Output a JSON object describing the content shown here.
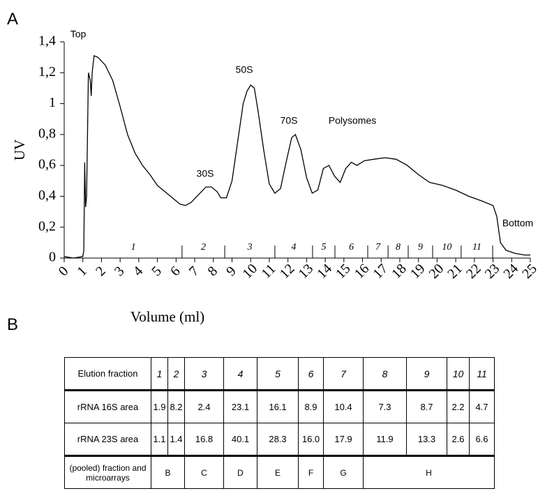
{
  "panel_label": "A",
  "chart_data": {
    "type": "line",
    "xlabel": "Volume (ml)",
    "ylabel": "UV",
    "x": [
      0,
      0.5,
      1.0,
      1.05,
      1.1,
      1.15,
      1.2,
      1.3,
      1.4,
      1.45,
      1.5,
      1.6,
      1.8,
      2.2,
      2.6,
      3.0,
      3.4,
      3.8,
      4.2,
      4.6,
      5.0,
      5.4,
      5.8,
      6.2,
      6.5,
      6.8,
      7.2,
      7.6,
      7.9,
      8.2,
      8.4,
      8.7,
      9.0,
      9.3,
      9.6,
      9.8,
      10.0,
      10.2,
      10.4,
      10.7,
      11.0,
      11.3,
      11.6,
      11.9,
      12.2,
      12.4,
      12.7,
      13.0,
      13.3,
      13.6,
      13.9,
      14.2,
      14.5,
      14.8,
      15.1,
      15.4,
      15.7,
      16.1,
      16.6,
      17.2,
      17.8,
      18.4,
      19.0,
      19.6,
      20.3,
      21.0,
      21.7,
      22.4,
      22.8,
      23.0,
      23.2,
      23.4,
      23.7,
      24.2,
      24.7,
      25
    ],
    "values": [
      0.01,
      0.0,
      0.01,
      0.05,
      0.62,
      0.33,
      0.4,
      1.2,
      1.15,
      1.05,
      1.2,
      1.31,
      1.3,
      1.25,
      1.15,
      0.98,
      0.8,
      0.68,
      0.6,
      0.54,
      0.47,
      0.43,
      0.39,
      0.35,
      0.34,
      0.36,
      0.41,
      0.46,
      0.46,
      0.43,
      0.39,
      0.39,
      0.5,
      0.75,
      1.0,
      1.08,
      1.12,
      1.1,
      0.95,
      0.7,
      0.48,
      0.42,
      0.45,
      0.62,
      0.78,
      0.8,
      0.7,
      0.52,
      0.42,
      0.44,
      0.58,
      0.6,
      0.53,
      0.49,
      0.58,
      0.62,
      0.6,
      0.63,
      0.64,
      0.65,
      0.64,
      0.6,
      0.54,
      0.49,
      0.47,
      0.44,
      0.4,
      0.37,
      0.35,
      0.34,
      0.27,
      0.1,
      0.05,
      0.03,
      0.02,
      0.02
    ],
    "color": "#000000",
    "xlim": [
      0,
      25
    ],
    "xticks": [
      0,
      1,
      2,
      3,
      4,
      5,
      6,
      7,
      8,
      9,
      10,
      11,
      12,
      13,
      14,
      15,
      16,
      17,
      18,
      19,
      20,
      21,
      22,
      23,
      24,
      25
    ],
    "ylim": [
      0,
      1.4
    ],
    "yticks": [
      0,
      {
        "value": 0.2,
        "label": "0,2"
      },
      {
        "value": 0.4,
        "label": "0,4"
      },
      {
        "value": 0.6,
        "label": "0,6"
      },
      {
        "value": 0.8,
        "label": "0,8"
      },
      1,
      {
        "value": 1.2,
        "label": "1,2"
      },
      {
        "value": 1.4,
        "label": "1,4"
      }
    ],
    "annotations": [
      "Top",
      "30S",
      "50S",
      "70S",
      "Polysomes",
      "Bottom"
    ],
    "fractions": {
      "labels": [
        "1",
        "2",
        "3",
        "4",
        "5",
        "6",
        "7",
        "8",
        "9",
        "10",
        "11"
      ],
      "boundaries": [
        1.1,
        6.32,
        8.61,
        11.3,
        13.32,
        14.52,
        16.28,
        17.37,
        18.45,
        19.76,
        21.29,
        22.98
      ]
    }
  },
  "table": {
    "panel_label": "B",
    "header": [
      "Elution fraction",
      "1",
      "2",
      "3",
      "4",
      "5",
      "6",
      "7",
      "8",
      "9",
      "10",
      "11"
    ],
    "rows": [
      [
        "rRNA 16S area",
        "1.9",
        "8.2",
        "2.4",
        "23.1",
        "16.1",
        "8.9",
        "10.4",
        "7.3",
        "8.7",
        "2.2",
        "4.7"
      ],
      [
        "rRNA 23S area",
        "1.1",
        "1.4",
        "16.8",
        "40.1",
        "28.3",
        "16.0",
        "17.9",
        "11.9",
        "13.3",
        "2.6",
        "6.6"
      ]
    ],
    "pooled": {
      "label": "(pooled) fraction and microarrays",
      "groups": [
        "B",
        "C",
        "D",
        "E",
        "F",
        "G",
        "H"
      ]
    }
  }
}
